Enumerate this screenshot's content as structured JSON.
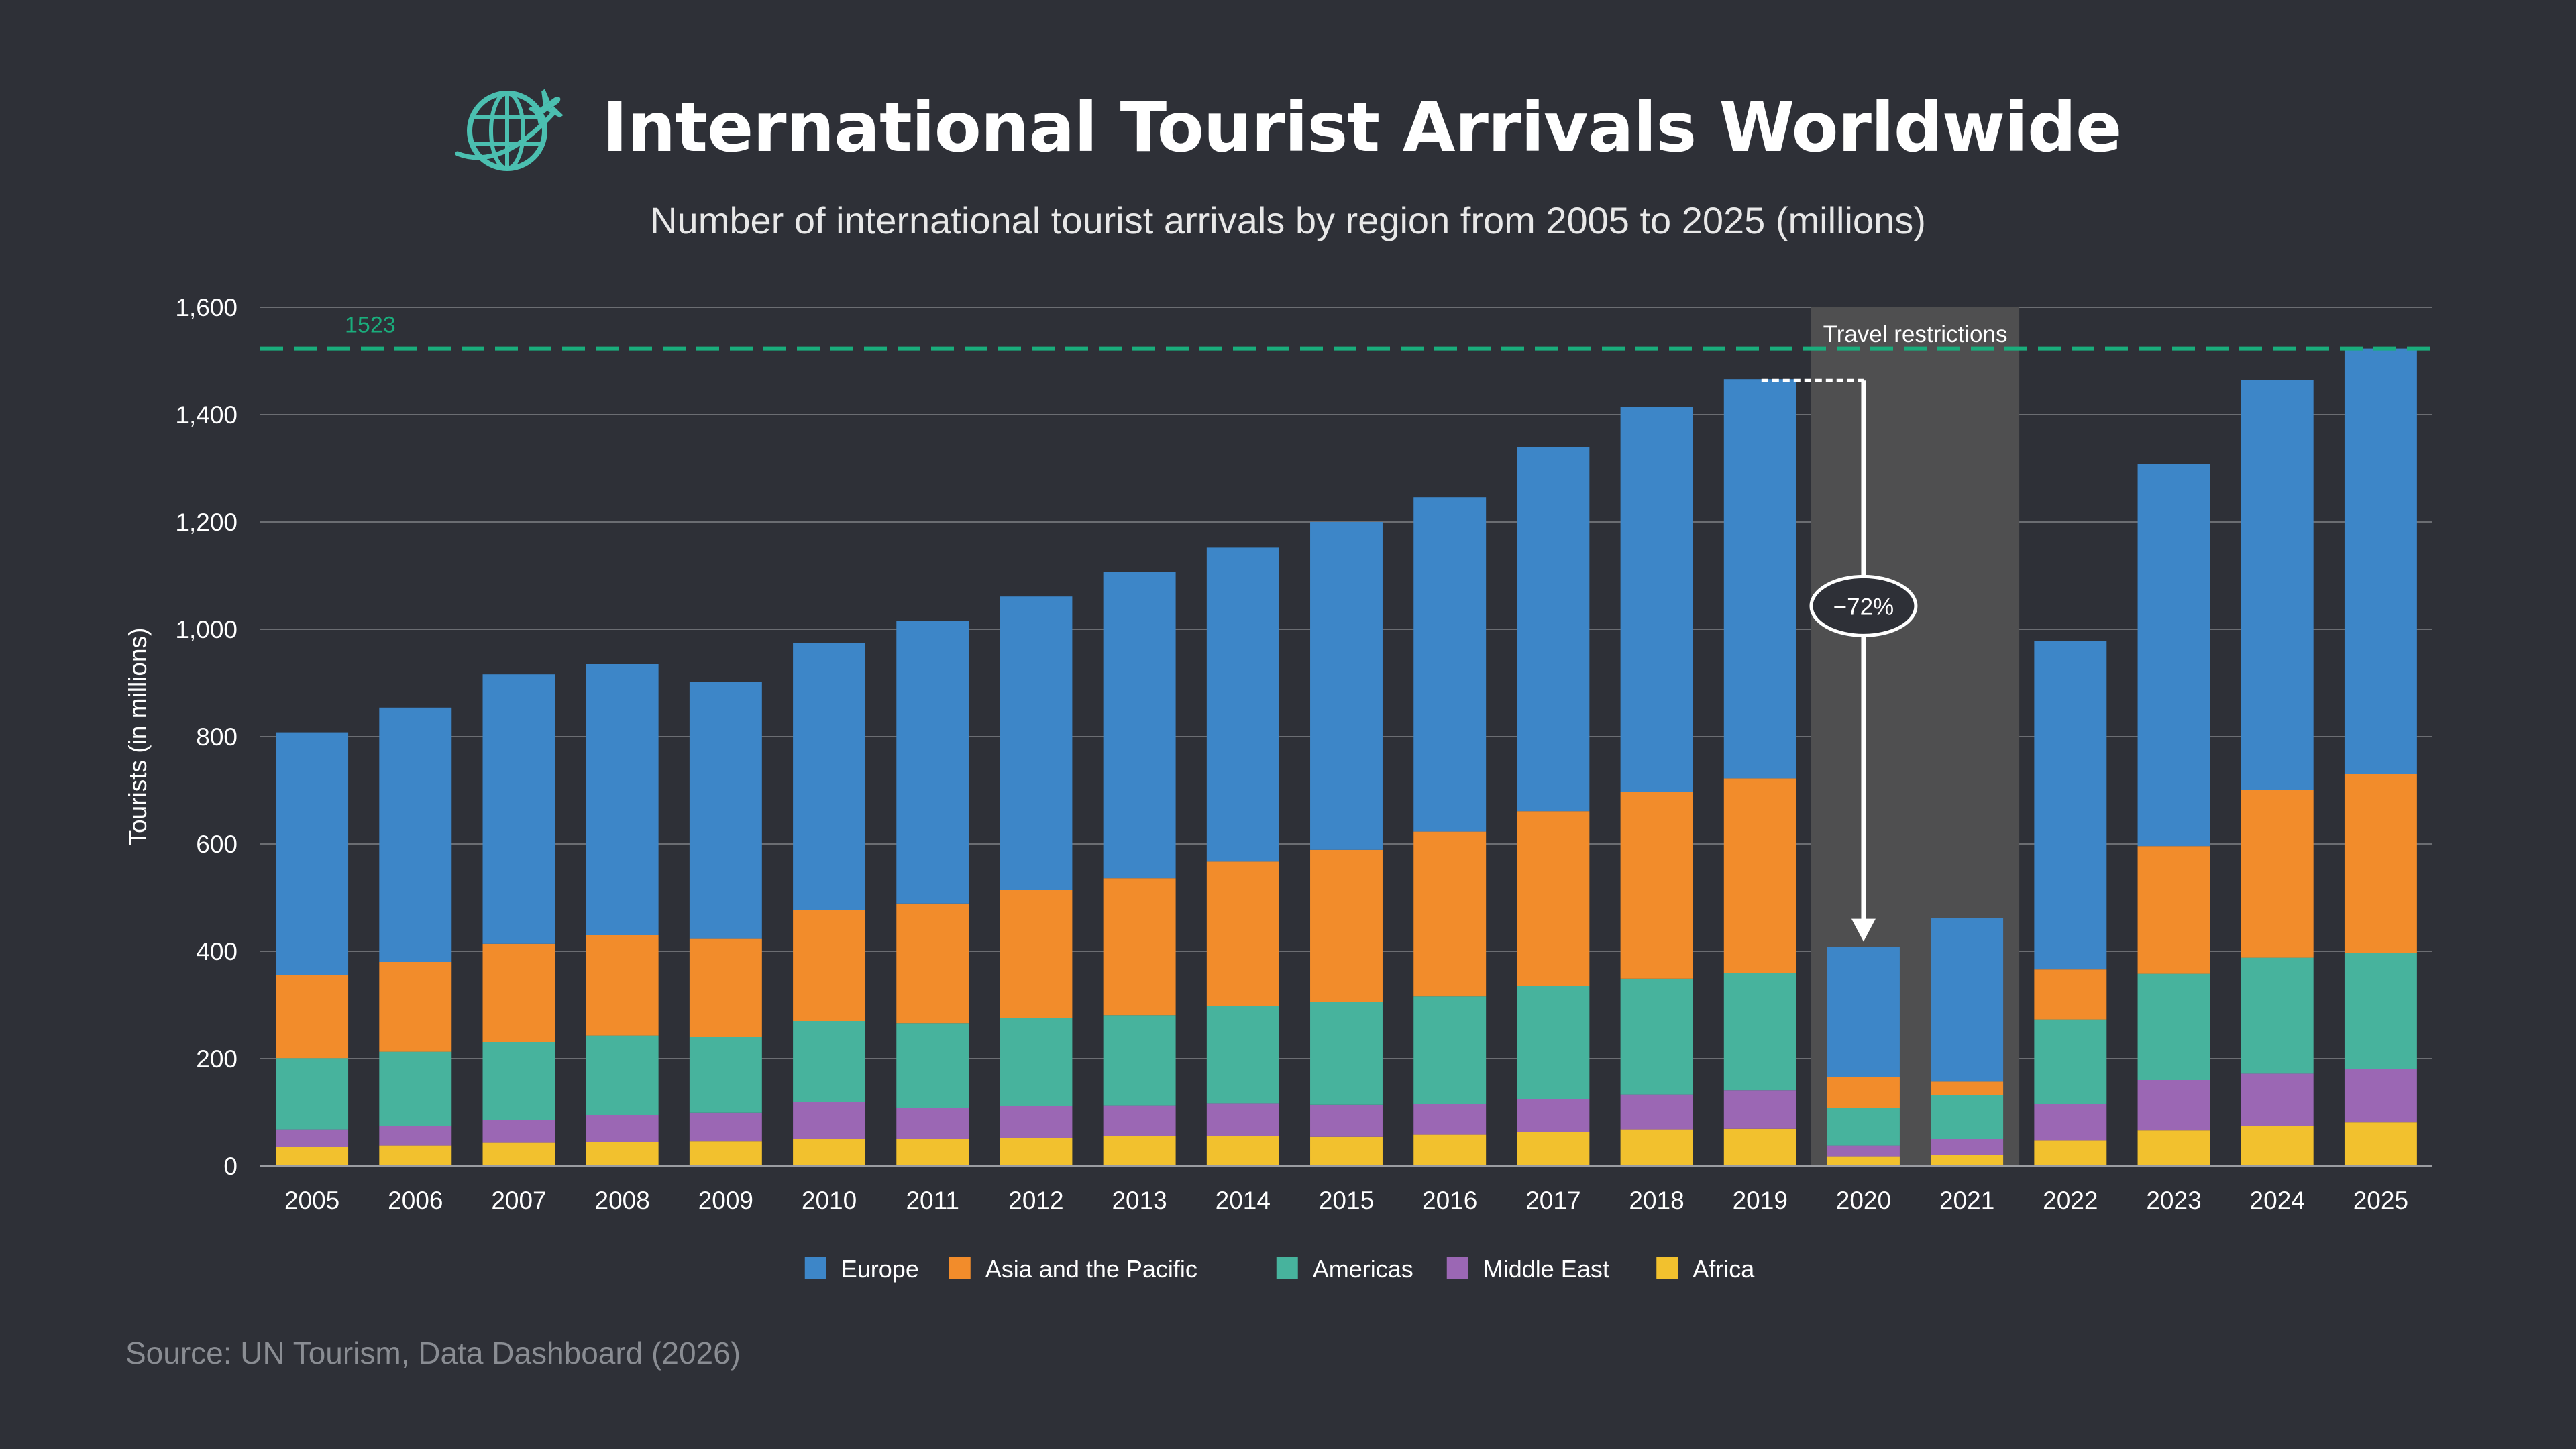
{
  "header": {
    "title": "International Tourist Arrivals Worldwide",
    "subtitle": "Number of international tourist arrivals by region from 2005 to 2025 (millions)",
    "logo_icon": "globe-airplane-icon"
  },
  "source": "Source: UN Tourism, Data Dashboard (2026)",
  "colors": {
    "background": "#2e3037",
    "Europe": "#3d86c8",
    "Asia and the Pacific": "#f28c2b",
    "Americas": "#47b39d",
    "Middle East": "#9b67b4",
    "Africa": "#f2c12e",
    "reference_line": "#1aad7c",
    "shade": "#4f4f50"
  },
  "chart_data": {
    "type": "bar",
    "stacked": true,
    "ylabel": "Tourists (in millions)",
    "ylim": [
      0,
      1600
    ],
    "yticks": [
      "0",
      "200",
      "400",
      "600",
      "800",
      "1,000",
      "1,200",
      "1,400",
      "1,600"
    ],
    "grid": true,
    "legend_position": "bottom",
    "categories": [
      "2005",
      "2006",
      "2007",
      "2008",
      "2009",
      "2010",
      "2011",
      "2012",
      "2013",
      "2014",
      "2015",
      "2016",
      "2017",
      "2018",
      "2019",
      "2020",
      "2021",
      "2022",
      "2023",
      "2024",
      "2025"
    ],
    "series": [
      {
        "name": "Africa",
        "values": [
          35,
          38,
          43,
          45,
          46,
          50,
          50,
          52,
          55,
          55,
          54,
          58,
          63,
          68,
          69,
          18,
          20,
          47,
          66,
          74,
          81
        ]
      },
      {
        "name": "Middle East",
        "values": [
          33,
          37,
          43,
          50,
          53,
          70,
          58,
          60,
          58,
          62,
          60,
          58,
          62,
          65,
          72,
          20,
          30,
          68,
          94,
          98,
          100
        ]
      },
      {
        "name": "Americas",
        "values": [
          133,
          138,
          145,
          148,
          141,
          150,
          158,
          163,
          168,
          181,
          192,
          200,
          210,
          216,
          219,
          70,
          82,
          158,
          198,
          216,
          216
        ]
      },
      {
        "name": "Asia and the Pacific",
        "values": [
          155,
          167,
          183,
          187,
          183,
          207,
          223,
          240,
          255,
          269,
          283,
          307,
          326,
          348,
          362,
          58,
          25,
          93,
          238,
          312,
          333
        ]
      },
      {
        "name": "Europe",
        "values": [
          452,
          474,
          502,
          505,
          479,
          497,
          526,
          546,
          571,
          585,
          611,
          623,
          678,
          717,
          744,
          242,
          305,
          612,
          712,
          764,
          793
        ]
      }
    ],
    "reference_line": {
      "value": 1523,
      "label": "1523"
    },
    "annotations": [
      {
        "type": "shaded_region",
        "x_start": "2020",
        "x_end": "2021",
        "label": "Travel restrictions"
      },
      {
        "type": "arrow",
        "from": "2019",
        "to": "2020",
        "label": "−72%"
      }
    ]
  }
}
